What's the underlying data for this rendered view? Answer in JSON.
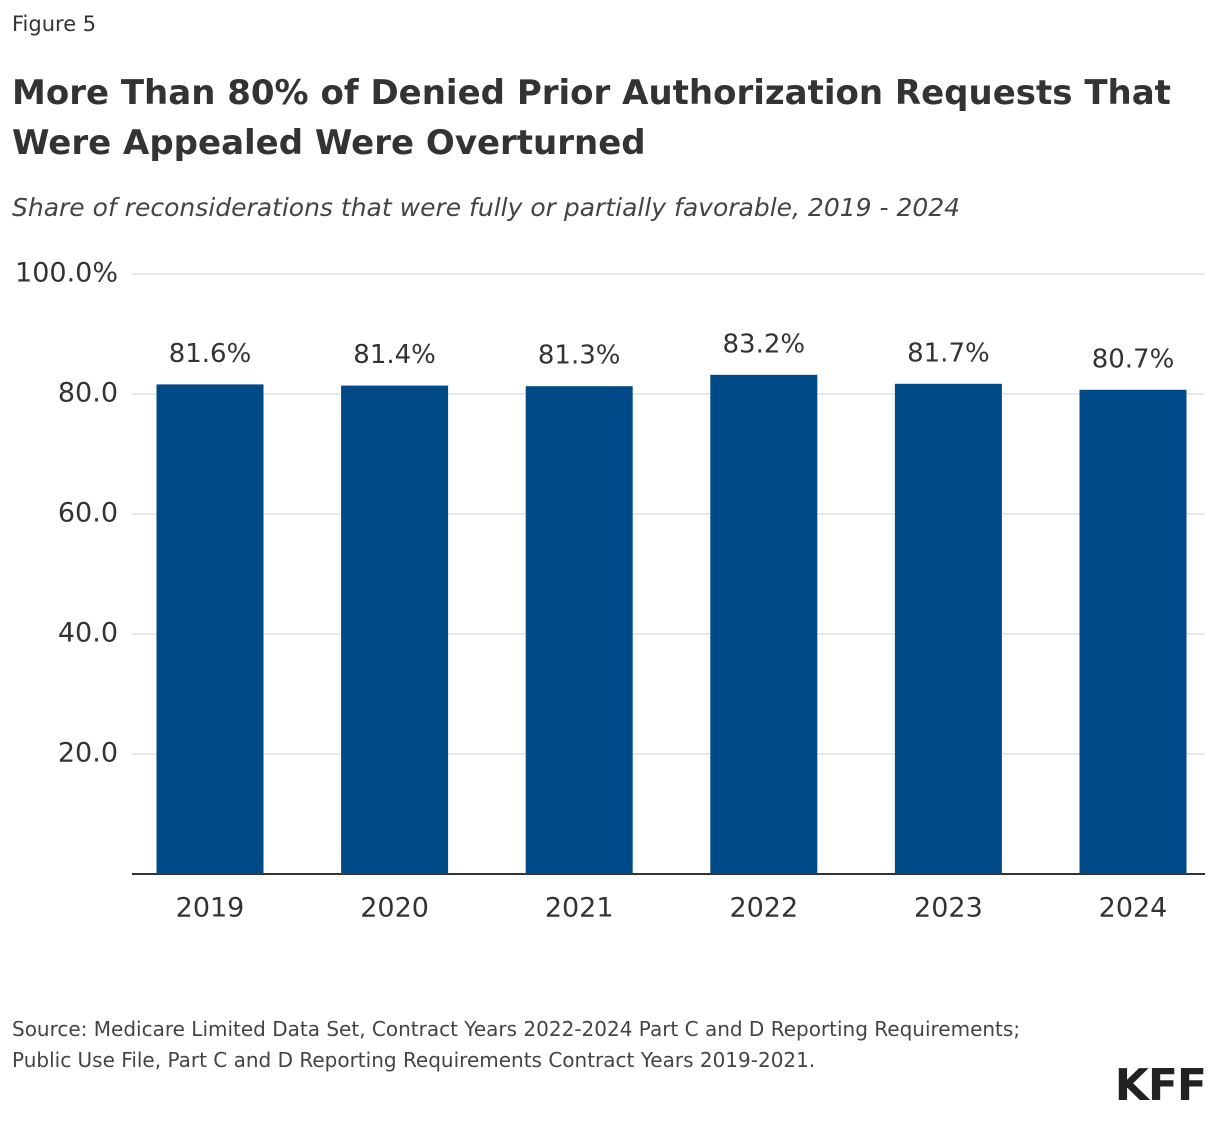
{
  "figure_label": "Figure 5",
  "chart_data": {
    "type": "bar",
    "title": "More Than 80% of Denied Prior Authorization Requests That Were Appealed Were Overturned",
    "subtitle": "Share of reconsiderations that were fully or partially favorable, 2019 - 2024",
    "categories": [
      "2019",
      "2020",
      "2021",
      "2022",
      "2023",
      "2024"
    ],
    "values": [
      81.6,
      81.4,
      81.3,
      83.2,
      81.7,
      80.7
    ],
    "value_labels": [
      "81.6%",
      "81.4%",
      "81.3%",
      "83.2%",
      "81.7%",
      "80.7%"
    ],
    "color": "#004b87",
    "ylim": [
      0,
      100
    ],
    "yticks": [
      {
        "value": 20,
        "label": "20.0"
      },
      {
        "value": 40,
        "label": "40.0"
      },
      {
        "value": 60,
        "label": "60.0"
      },
      {
        "value": 80,
        "label": "80.0"
      },
      {
        "value": 100,
        "label": "100.0%"
      }
    ],
    "grid": true
  },
  "source": "Source: Medicare Limited Data Set, Contract Years 2022-2024 Part C and D Reporting Requirements; Public Use File, Part C and D Reporting Requirements Contract Years 2019-2021.",
  "logo": "KFF"
}
